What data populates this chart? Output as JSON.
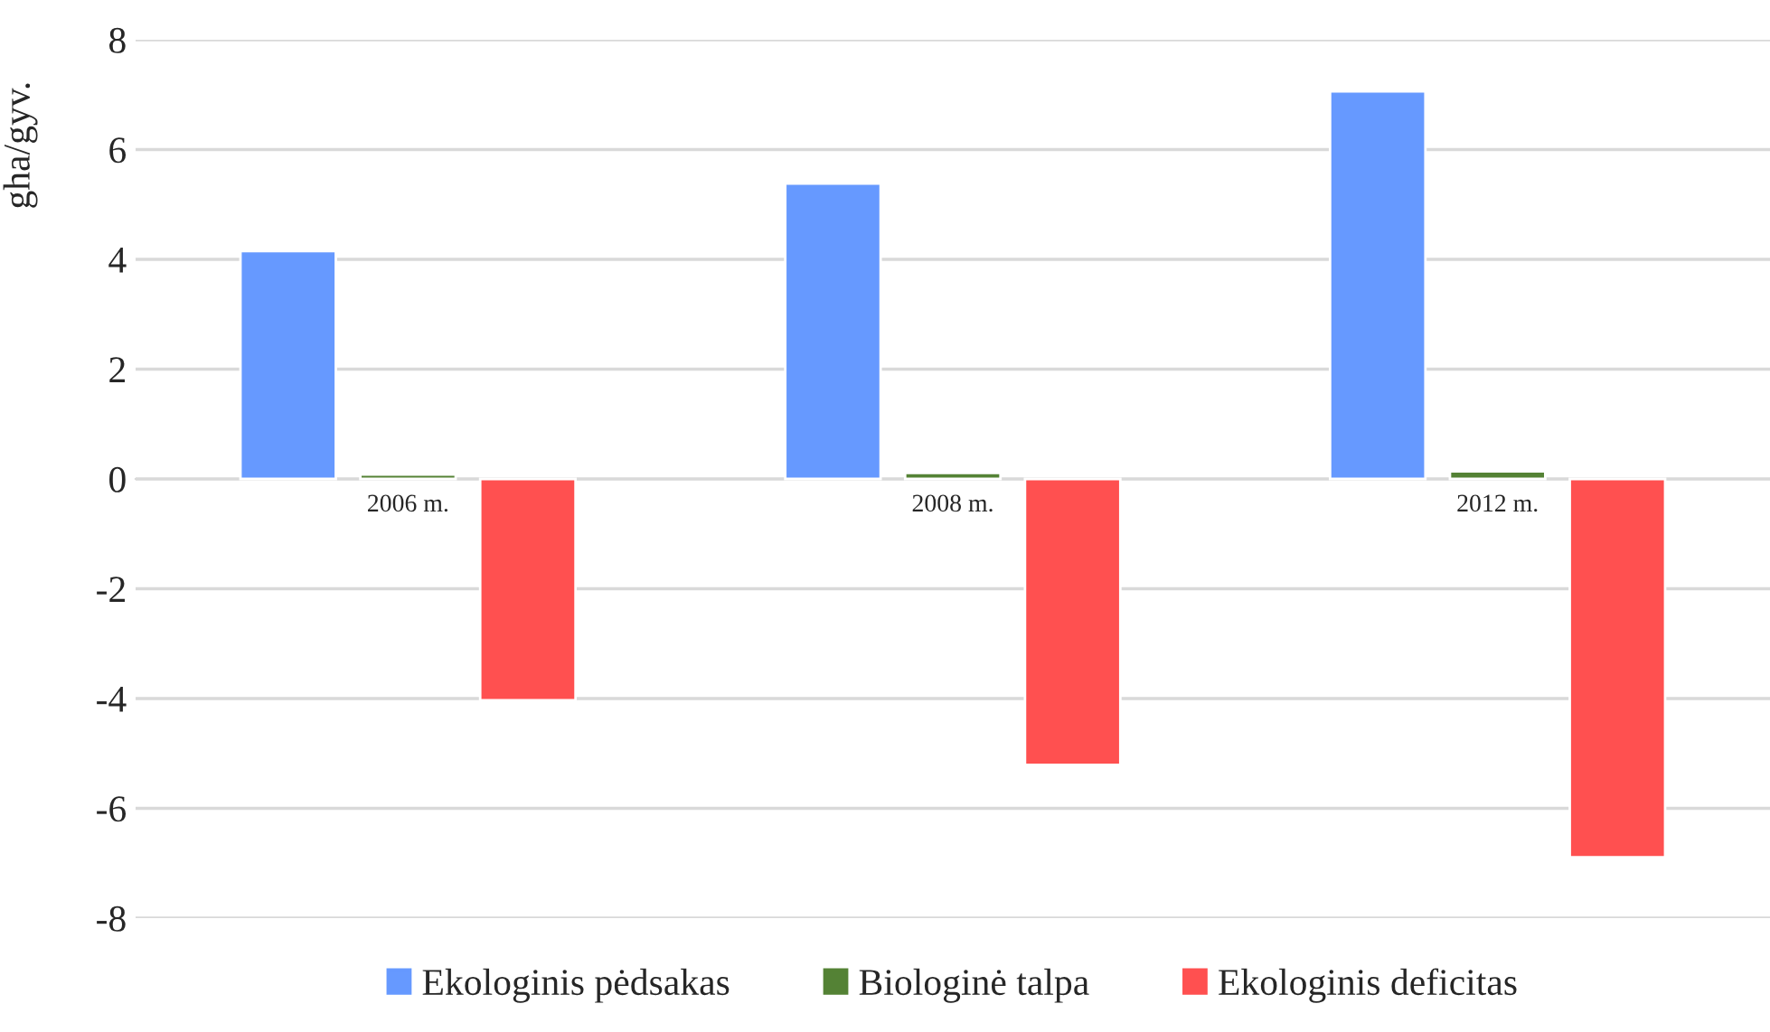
{
  "chart_data": {
    "type": "bar",
    "ylabel": "gha/gyv.",
    "categories": [
      "2006 m.",
      "2008 m.",
      "2012 m."
    ],
    "series": [
      {
        "name": "Ekologinis pėdsakas",
        "color": "#6699ff",
        "values": [
          4.15,
          5.38,
          7.06
        ]
      },
      {
        "name": "Biologinė talpa",
        "color": "#548235",
        "values": [
          0.08,
          0.11,
          0.14
        ]
      },
      {
        "name": "Ekologinis deficitas",
        "color": "#ff5050",
        "values": [
          -4.03,
          -5.21,
          -6.89
        ]
      }
    ],
    "ylim": [
      -8,
      8
    ],
    "yticks": [
      -8,
      -6,
      -4,
      -2,
      0,
      2,
      4,
      6,
      8
    ],
    "grid": "y",
    "legend": "bottom"
  }
}
